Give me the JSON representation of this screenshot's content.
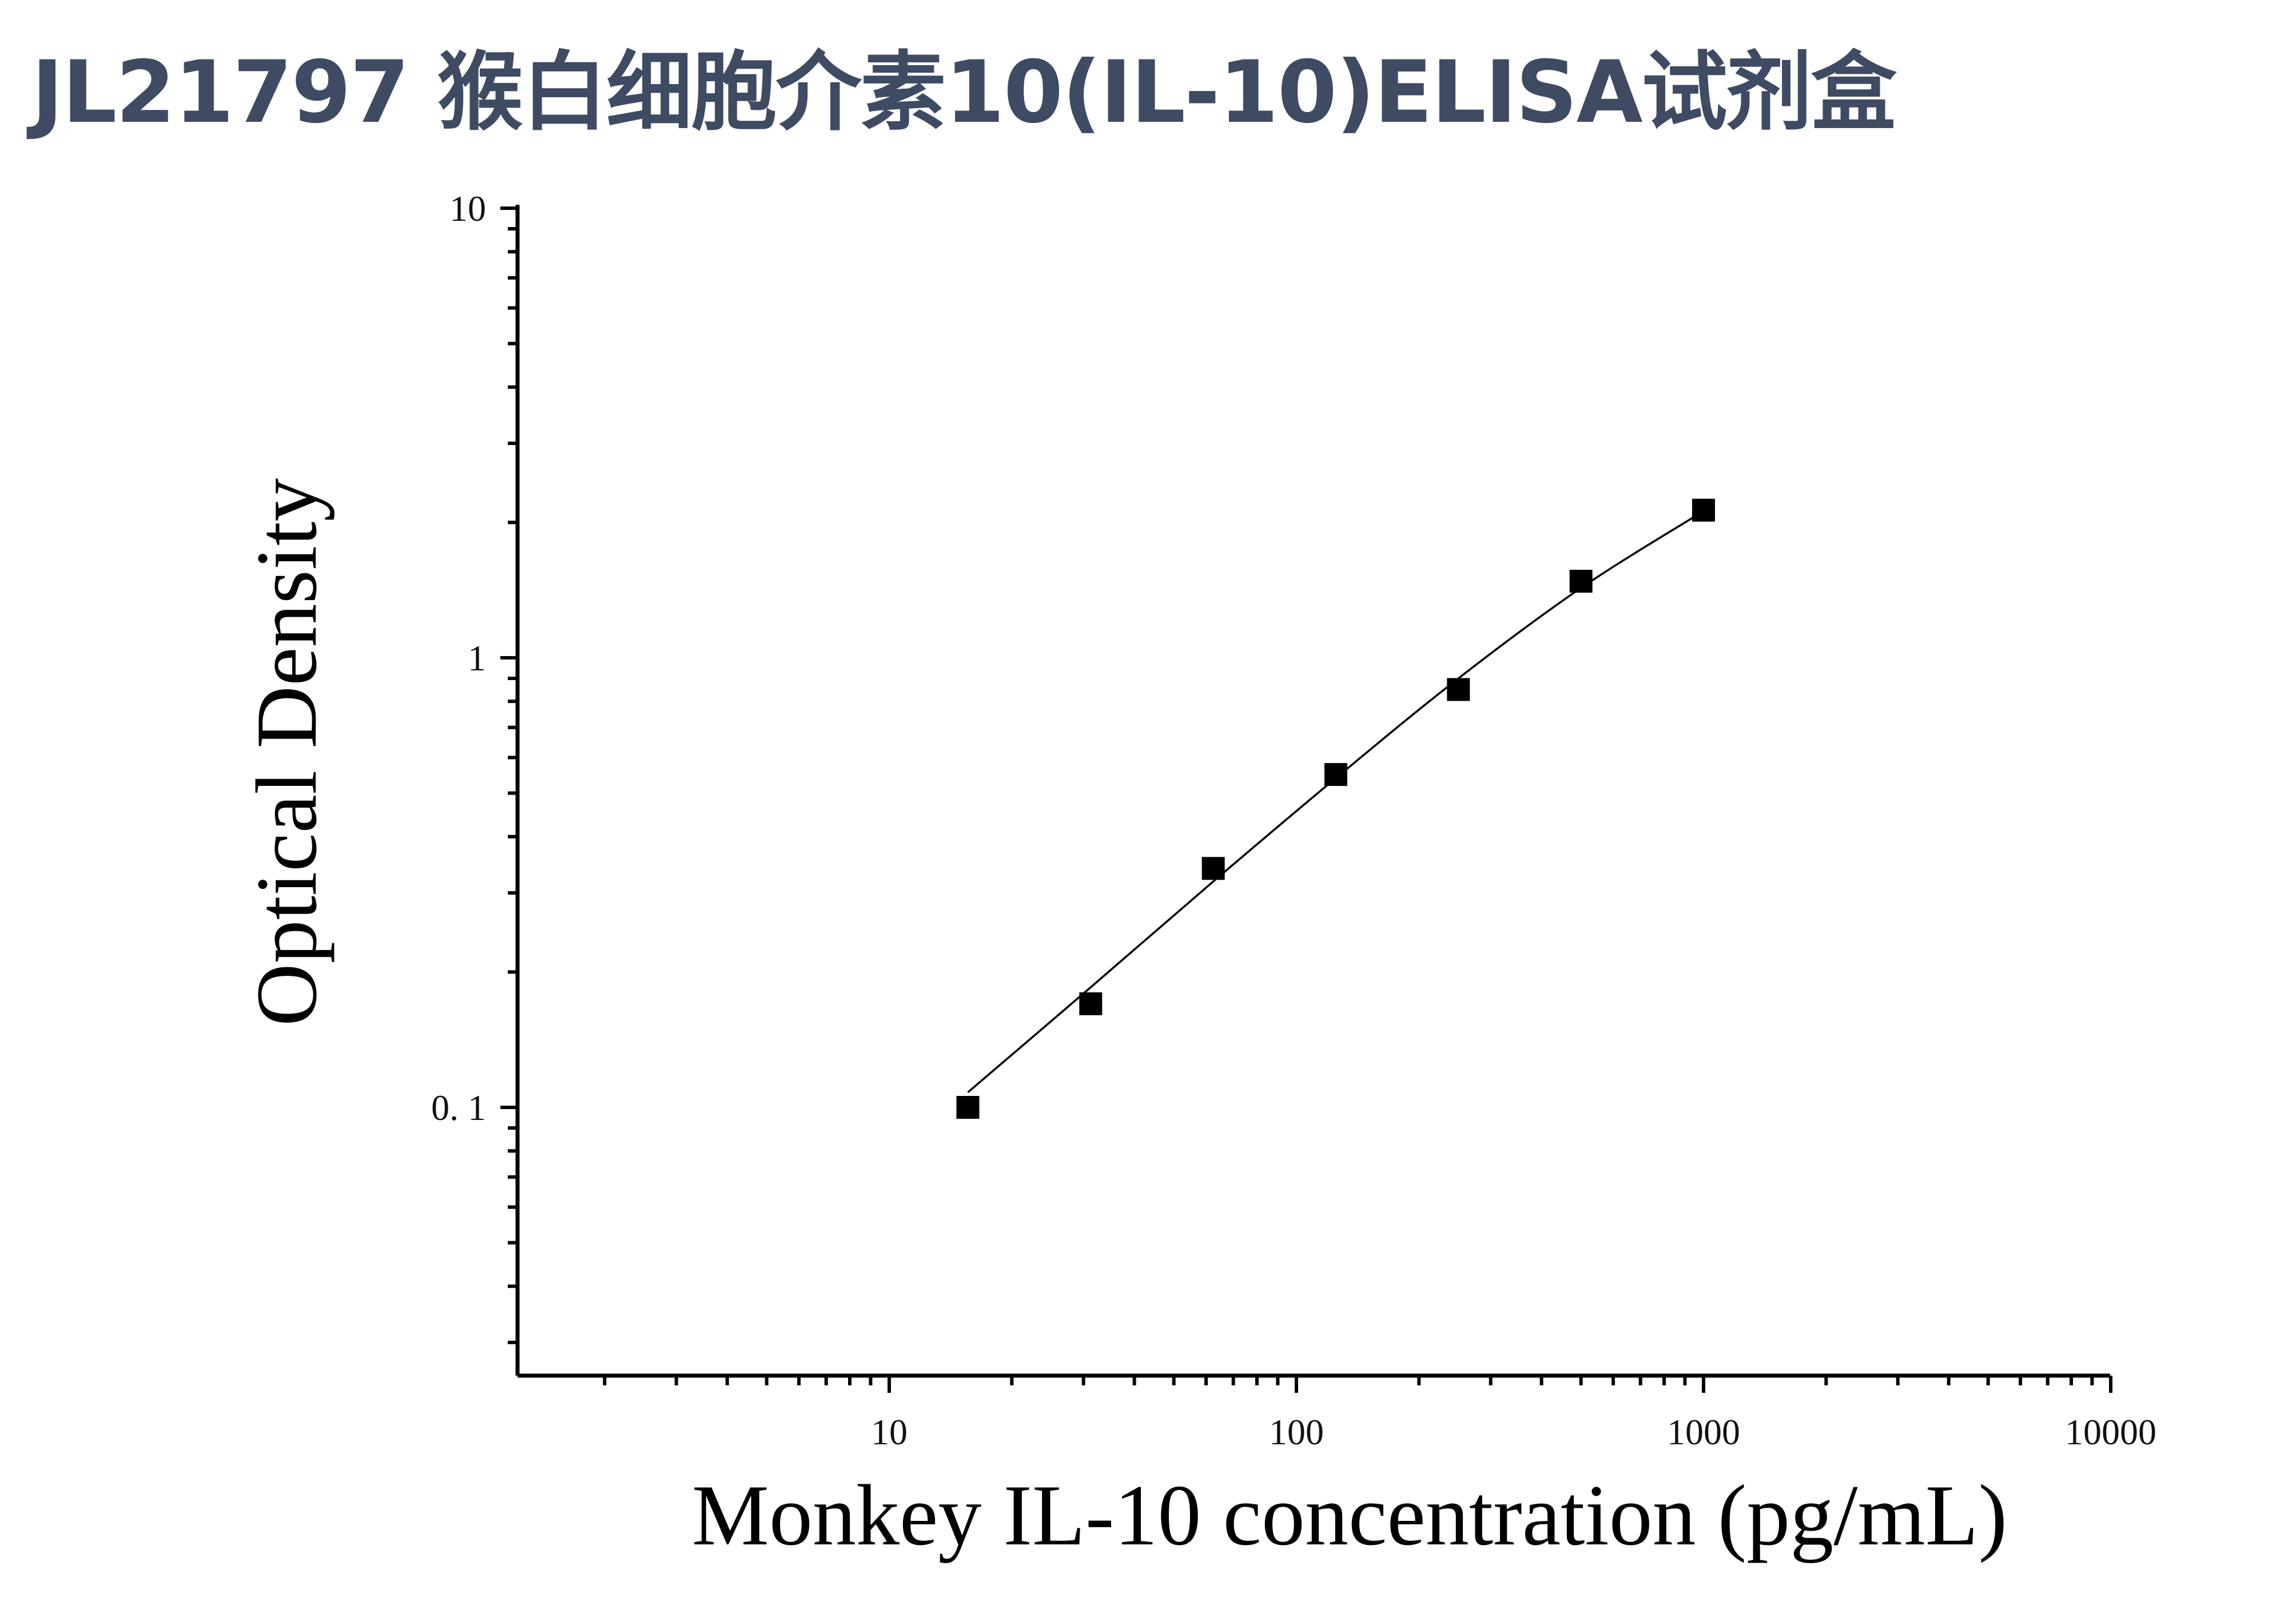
{
  "page": {
    "title": "JL21797 猴白细胞介素10(IL-10)ELISA试剂盒"
  },
  "chart_data": {
    "type": "scatter",
    "xlabel": "Monkey IL-10 concentration (pg/mL)",
    "ylabel": "Optical Density",
    "x_scale": "log",
    "y_scale": "log",
    "xlim": [
      1,
      10000
    ],
    "ylim": [
      0.03,
      10
    ],
    "x_ticks": [
      {
        "value": 10,
        "label": "10"
      },
      {
        "value": 100,
        "label": "100"
      },
      {
        "value": 1000,
        "label": "1000"
      },
      {
        "value": 10000,
        "label": "10000"
      }
    ],
    "y_ticks": [
      {
        "value": 0.1,
        "label": "0. 1"
      },
      {
        "value": 1,
        "label": "1"
      },
      {
        "value": 10,
        "label": "10"
      }
    ],
    "grid": false,
    "series": [
      {
        "marker": "square",
        "color": "#000000",
        "points": [
          {
            "x": 15.6,
            "y": 0.1
          },
          {
            "x": 31.25,
            "y": 0.17
          },
          {
            "x": 62.5,
            "y": 0.34
          },
          {
            "x": 125,
            "y": 0.55
          },
          {
            "x": 250,
            "y": 0.85
          },
          {
            "x": 500,
            "y": 1.48
          },
          {
            "x": 1000,
            "y": 2.13
          }
        ]
      }
    ],
    "fit_curve": {
      "style": "smooth line",
      "color": "#000000",
      "points": [
        {
          "x": 15.6,
          "y": 0.108
        },
        {
          "x": 31.25,
          "y": 0.185
        },
        {
          "x": 62.5,
          "y": 0.318
        },
        {
          "x": 125,
          "y": 0.54
        },
        {
          "x": 250,
          "y": 0.9
        },
        {
          "x": 500,
          "y": 1.43
        },
        {
          "x": 1000,
          "y": 2.12
        }
      ]
    }
  }
}
